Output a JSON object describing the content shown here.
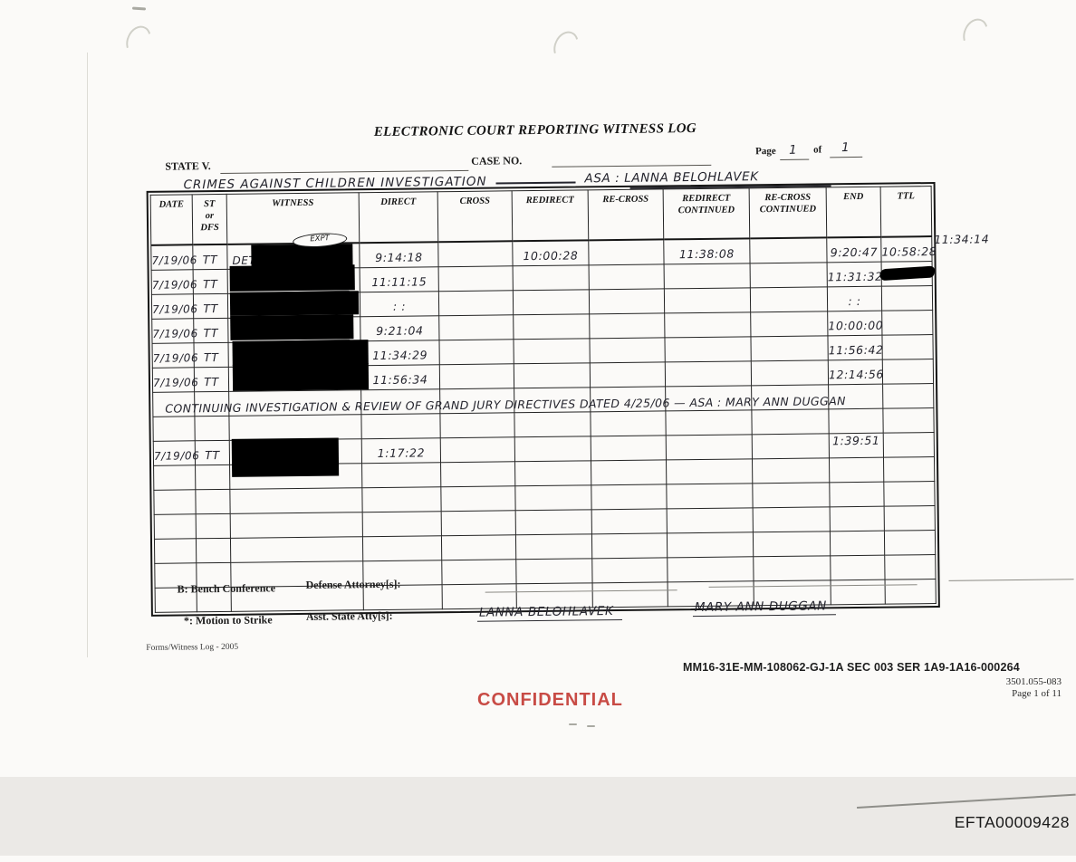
{
  "header": {
    "title": "ELECTRONIC COURT REPORTING WITNESS LOG",
    "state_v_label": "STATE V.",
    "case_no_label": "CASE NO.",
    "page_label": "Page",
    "of_label": "of",
    "page_num": "1",
    "page_total": "1",
    "case_name_handwritten": "CRIMES AGAINST CHILDREN INVESTIGATION",
    "asa_handwritten": "ASA : LANNA BELOHLAVEK"
  },
  "table": {
    "headers": [
      [
        "DATE"
      ],
      [
        "ST",
        "or",
        "DFS"
      ],
      [
        "WITNESS"
      ],
      [
        "DIRECT"
      ],
      [
        "CROSS"
      ],
      [
        "REDIRECT"
      ],
      [
        "RE-CROSS"
      ],
      [
        "REDIRECT",
        "CONTINUED"
      ],
      [
        "RE-CROSS",
        "CONTINUED"
      ],
      [
        "END"
      ],
      [
        "TTL"
      ]
    ],
    "rows": [
      {
        "date": "7/19/06",
        "st": "TT",
        "witness_prefix": "DET",
        "witness_redacted": true,
        "witness_tag": "EXPT",
        "direct": "9:14:18",
        "cross": "",
        "redirect": "10:00:28",
        "recross": "",
        "redirect_cont": "11:38:08",
        "recross_cont": "",
        "end": "9:20:47",
        "ttl": "10:58:28",
        "margin_note": "11:34:14"
      },
      {
        "date": "7/19/06",
        "st": "TT",
        "witness_redacted": true,
        "direct": "11:11:15",
        "end": "11:31:32",
        "ttl_scribbled": true
      },
      {
        "date": "7/19/06",
        "st": "TT",
        "witness_redacted": true,
        "direct": ":  :",
        "end": ":  :"
      },
      {
        "date": "7/19/06",
        "st": "TT",
        "witness_redacted": true,
        "direct": "9:21:04",
        "end": "10:00:00"
      },
      {
        "date": "7/19/06",
        "st": "TT",
        "witness_redacted": true,
        "direct": "11:34:29",
        "end": "11:56:42"
      },
      {
        "date": "7/19/06",
        "st": "TT",
        "witness_redacted": true,
        "direct": "11:56:34",
        "end": "12:14:56"
      },
      {},
      {
        "note": "CONTINUING INVESTIGATION & REVIEW OF GRAND JURY DIRECTIVES DATED 4/25/06   — ASA : MARY ANN DUGGAN"
      },
      {
        "date": "7/19/06",
        "st": "TT",
        "witness_redacted": true,
        "direct": "1:17:22",
        "end": "1:39:51"
      },
      {},
      {},
      {},
      {},
      {},
      {}
    ]
  },
  "footer": {
    "bench_label": "B: Bench Conference",
    "motion_label": "*: Motion to Strike",
    "defense_label": "Defense Attorney[s]:",
    "asst_label": "Asst. State Atty[s]:",
    "asst_name_1": "LANNA BELOHLAVEK",
    "asst_name_2": "MARY ANN DUGGAN",
    "form_version": "Forms/Witness Log - 2005"
  },
  "stamps": {
    "bates_line": "MM16-31E-MM-108062-GJ-1A SEC 003 SER 1A9-1A16-000264",
    "doc_number": "3501.055-083",
    "page_of": "Page 1 of 11",
    "confidential": "CONFIDENTIAL",
    "confidential_color": "#c84b45",
    "efta_number": "EFTA00009428"
  }
}
